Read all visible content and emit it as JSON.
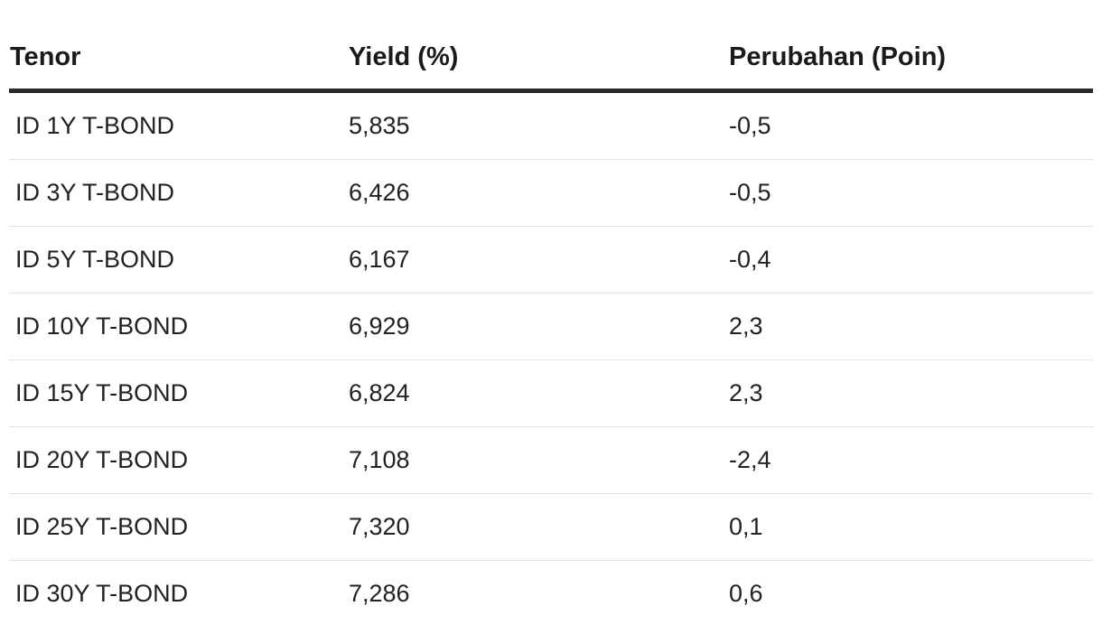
{
  "table": {
    "headers": [
      "Tenor",
      "Yield (%)",
      "Perubahan (Poin)"
    ],
    "rows": [
      [
        "ID 1Y T-BOND",
        "5,835",
        "-0,5"
      ],
      [
        "ID 3Y T-BOND",
        "6,426",
        "-0,5"
      ],
      [
        "ID 5Y T-BOND",
        "6,167",
        "-0,4"
      ],
      [
        "ID 10Y T-BOND",
        "6,929",
        "2,3"
      ],
      [
        "ID 15Y T-BOND",
        "6,824",
        "2,3"
      ],
      [
        "ID 20Y T-BOND",
        "7,108",
        "-2,4"
      ],
      [
        "ID 25Y T-BOND",
        "7,320",
        "0,1"
      ],
      [
        "ID 30Y T-BOND",
        "7,286",
        "0,6"
      ]
    ]
  }
}
